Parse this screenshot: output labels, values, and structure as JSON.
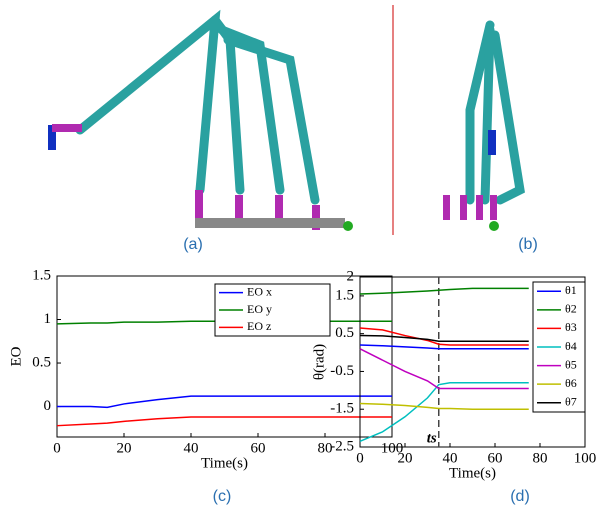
{
  "figure_labels": [
    "(a)",
    "(b)",
    "(c)",
    "(d)"
  ],
  "chart_data": [
    {
      "type": "line",
      "xlabel": "Time(s)",
      "ylabel": "EO",
      "x": [
        0,
        10,
        15,
        20,
        30,
        40,
        50,
        60,
        70,
        80,
        90,
        100
      ],
      "xlim": [
        0,
        100
      ],
      "xticks": [
        0,
        20,
        40,
        60,
        80,
        100
      ],
      "ylim": [
        -0.35,
        1.5
      ],
      "yticks": [
        0,
        0.5,
        1,
        1.5
      ],
      "series": [
        {
          "name": "EO x",
          "color": "#0000ff",
          "values": [
            0,
            0,
            -0.01,
            0.03,
            0.08,
            0.12,
            0.12,
            0.12,
            0.12,
            0.12,
            0.12,
            0.12
          ]
        },
        {
          "name": "EO y",
          "color": "#008000",
          "values": [
            0.95,
            0.96,
            0.96,
            0.97,
            0.97,
            0.98,
            0.98,
            0.98,
            0.98,
            0.98,
            0.98,
            0.98
          ]
        },
        {
          "name": "EO z",
          "color": "#ff0000",
          "values": [
            -0.22,
            -0.2,
            -0.19,
            -0.17,
            -0.14,
            -0.12,
            -0.12,
            -0.12,
            -0.12,
            -0.12,
            -0.12,
            -0.12
          ]
        }
      ]
    },
    {
      "type": "line",
      "xlabel": "Time(s)",
      "ylabel": "θ(rad)",
      "x": [
        0,
        10,
        20,
        30,
        35,
        40,
        50,
        60,
        70,
        75
      ],
      "xlim": [
        0,
        100
      ],
      "xticks": [
        0,
        20,
        40,
        60,
        80,
        100
      ],
      "ylim": [
        -2.5,
        2
      ],
      "yticks": [
        -2.5,
        -1.5,
        -0.5,
        0.5,
        1.5,
        2
      ],
      "annotation": {
        "x": 35,
        "label": "ts"
      },
      "series": [
        {
          "name": "θ1",
          "color": "#0000ff",
          "values": [
            0.2,
            0.18,
            0.15,
            0.12,
            0.1,
            0.1,
            0.1,
            0.1,
            0.1,
            0.1
          ]
        },
        {
          "name": "θ2",
          "color": "#008000",
          "values": [
            1.55,
            1.57,
            1.6,
            1.63,
            1.65,
            1.67,
            1.7,
            1.7,
            1.7,
            1.7
          ]
        },
        {
          "name": "θ3",
          "color": "#ff0000",
          "values": [
            0.65,
            0.6,
            0.45,
            0.32,
            0.22,
            0.2,
            0.2,
            0.2,
            0.2,
            0.2
          ]
        },
        {
          "name": "θ4",
          "color": "#00bfbf",
          "values": [
            -2.35,
            -2.1,
            -1.7,
            -1.2,
            -0.85,
            -0.8,
            -0.8,
            -0.8,
            -0.8,
            -0.8
          ]
        },
        {
          "name": "θ5",
          "color": "#bf00bf",
          "values": [
            0.1,
            -0.2,
            -0.5,
            -0.75,
            -0.95,
            -0.95,
            -0.95,
            -0.95,
            -0.95,
            -0.95
          ]
        },
        {
          "name": "θ6",
          "color": "#bfbf00",
          "values": [
            -1.35,
            -1.37,
            -1.4,
            -1.45,
            -1.48,
            -1.48,
            -1.5,
            -1.5,
            -1.5,
            -1.5
          ]
        },
        {
          "name": "θ7",
          "color": "#000000",
          "values": [
            0.45,
            0.44,
            0.4,
            0.35,
            0.3,
            0.3,
            0.3,
            0.3,
            0.3,
            0.3
          ]
        }
      ]
    }
  ]
}
